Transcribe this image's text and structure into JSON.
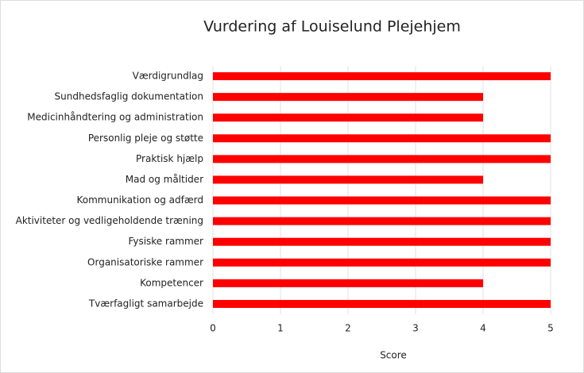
{
  "chart_data": {
    "type": "barh",
    "title": "Vurdering af Louiselund Plejehjem",
    "xlabel": "Score",
    "categories": [
      "Værdigrundlag",
      "Sundhedsfaglig dokumentation",
      "Medicinhåndtering og administration",
      "Personlig pleje og støtte",
      "Praktisk hjælp",
      "Mad og måltider",
      "Kommunikation og adfærd",
      "Aktiviteter og vedligeholdende træning",
      "Fysiske rammer",
      "Organisatoriske rammer",
      "Kompetencer",
      "Tværfagligt samarbejde"
    ],
    "values": [
      5,
      4,
      4,
      5,
      5,
      4,
      5,
      5,
      5,
      5,
      4,
      5
    ],
    "color": "#ff0000",
    "xlim": [
      0,
      5
    ],
    "xticks": [
      0,
      1,
      2,
      3,
      4,
      5
    ],
    "grid": true
  }
}
